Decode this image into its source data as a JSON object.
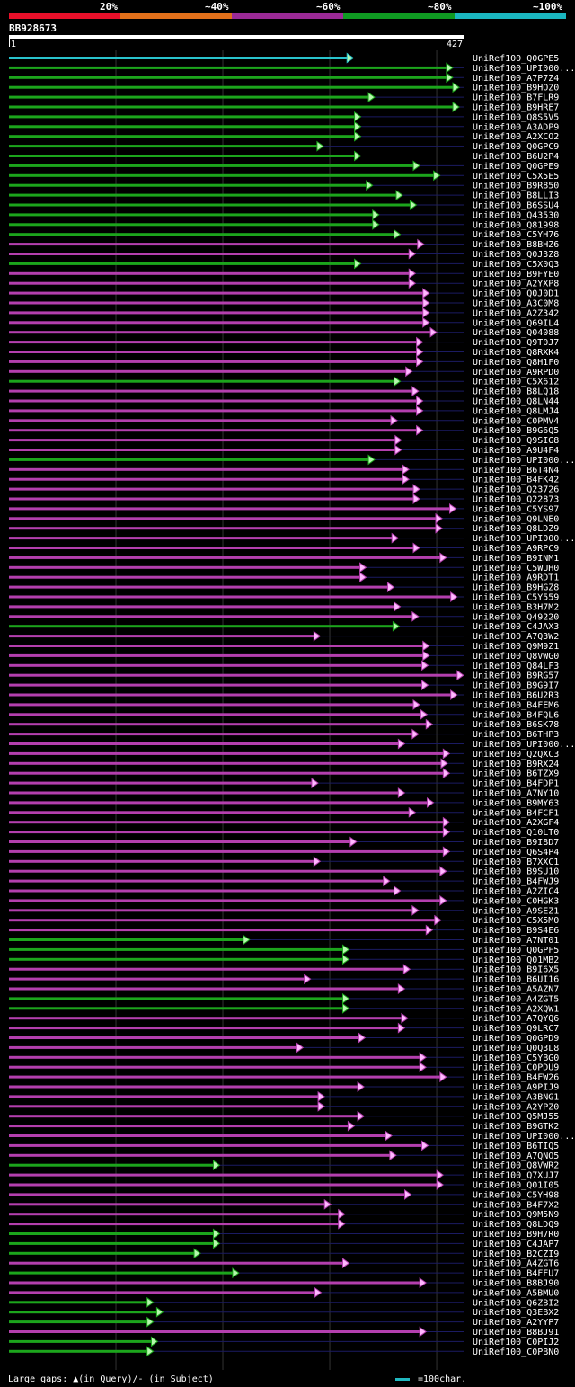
{
  "legend": {
    "bins": [
      {
        "label": "20%",
        "color": "#e8102a"
      },
      {
        "label": "~40%",
        "color": "#e2701a"
      },
      {
        "label": "~60%",
        "color": "#9b2a96"
      },
      {
        "label": "~80%",
        "color": "#0f9a22"
      },
      {
        "label": "~100%",
        "color": "#1ab6c0"
      }
    ]
  },
  "query": {
    "id": "BB928673",
    "start_label": "1",
    "end_label": "427",
    "length": 427
  },
  "colors": {
    "cyan": "#29c3cc",
    "green": "#1ca51c",
    "magenta": "#b43fae",
    "arrow_fill": "#b6f8ad",
    "arrow_fill_m": "#ffb8ff",
    "navy": "#1b1b62",
    "grid": "#333"
  },
  "footer": {
    "gaps_text": "Large gaps: ▲(in Query)/- (in Subject)",
    "scale_text": "=100char."
  },
  "chart_data": {
    "type": "blast_hit_overview",
    "x_range": [
      1,
      427
    ],
    "hits": [
      {
        "name": "UniRef100_Q0GPE5",
        "c": "cyan",
        "end": 323
      },
      {
        "name": "UniRef100_UPI000...",
        "c": "green",
        "end": 416
      },
      {
        "name": "UniRef100_A7P7Z4",
        "c": "green",
        "end": 416
      },
      {
        "name": "UniRef100_B9HOZ0",
        "c": "green",
        "end": 422
      },
      {
        "name": "UniRef100_B7FLR9",
        "c": "green",
        "end": 343
      },
      {
        "name": "UniRef100_B9HRE7",
        "c": "green",
        "end": 422
      },
      {
        "name": "UniRef100_Q8S5V5",
        "c": "green",
        "end": 330
      },
      {
        "name": "UniRef100_A3ADP9",
        "c": "green",
        "end": 330
      },
      {
        "name": "UniRef100_A2XCO2",
        "c": "green",
        "end": 330
      },
      {
        "name": "UniRef100_Q0GPC9",
        "c": "green",
        "end": 295
      },
      {
        "name": "UniRef100_B6U2P4",
        "c": "green",
        "end": 330
      },
      {
        "name": "UniRef100_Q0GPE9",
        "c": "green",
        "end": 385
      },
      {
        "name": "UniRef100_C5X5E5",
        "c": "green",
        "end": 404
      },
      {
        "name": "UniRef100_B9R850",
        "c": "green",
        "end": 341
      },
      {
        "name": "UniRef100_B8LLI3",
        "c": "green",
        "end": 369
      },
      {
        "name": "UniRef100_B6SSU4",
        "c": "green",
        "end": 382
      },
      {
        "name": "UniRef100_Q43530",
        "c": "green",
        "end": 347
      },
      {
        "name": "UniRef100_Q81998",
        "c": "green",
        "end": 347
      },
      {
        "name": "UniRef100_C5YH76",
        "c": "green",
        "end": 367
      },
      {
        "name": "UniRef100_B8BHZ6",
        "c": "magenta",
        "end": 389
      },
      {
        "name": "UniRef100_Q0J3Z8",
        "c": "magenta",
        "end": 381
      },
      {
        "name": "UniRef100_C5X0Q3",
        "c": "green",
        "end": 330
      },
      {
        "name": "UniRef100_B9FYE0",
        "c": "magenta",
        "end": 381
      },
      {
        "name": "UniRef100_A2YXP8",
        "c": "magenta",
        "end": 381
      },
      {
        "name": "UniRef100_Q0J0D1",
        "c": "magenta",
        "end": 394
      },
      {
        "name": "UniRef100_A3C0M8",
        "c": "magenta",
        "end": 394
      },
      {
        "name": "UniRef100_A2Z342",
        "c": "magenta",
        "end": 394
      },
      {
        "name": "UniRef100_Q69IL4",
        "c": "magenta",
        "end": 394
      },
      {
        "name": "UniRef100_Q04088",
        "c": "magenta",
        "end": 401
      },
      {
        "name": "UniRef100_Q9T0J7",
        "c": "magenta",
        "end": 388
      },
      {
        "name": "UniRef100_Q8RXK4",
        "c": "magenta",
        "end": 388
      },
      {
        "name": "UniRef100_Q8H1F0",
        "c": "magenta",
        "end": 388
      },
      {
        "name": "UniRef100_A9RPD0",
        "c": "magenta",
        "end": 378
      },
      {
        "name": "UniRef100_C5X612",
        "c": "green",
        "end": 367
      },
      {
        "name": "UniRef100_B8LQ18",
        "c": "magenta",
        "end": 384
      },
      {
        "name": "UniRef100_Q8LN44",
        "c": "magenta",
        "end": 388
      },
      {
        "name": "UniRef100_Q8LMJ4",
        "c": "magenta",
        "end": 388
      },
      {
        "name": "UniRef100_C0PMV4",
        "c": "magenta",
        "end": 364
      },
      {
        "name": "UniRef100_B9G6Q5",
        "c": "magenta",
        "end": 388
      },
      {
        "name": "UniRef100_Q9SIG8",
        "c": "magenta",
        "end": 368
      },
      {
        "name": "UniRef100_A9U4F4",
        "c": "magenta",
        "end": 368
      },
      {
        "name": "UniRef100_UPI000...",
        "c": "green",
        "end": 343
      },
      {
        "name": "UniRef100_B6T4N4",
        "c": "magenta",
        "end": 375
      },
      {
        "name": "UniRef100_B4FK42",
        "c": "magenta",
        "end": 375
      },
      {
        "name": "UniRef100_Q23726",
        "c": "magenta",
        "end": 385
      },
      {
        "name": "UniRef100_Q22873",
        "c": "magenta",
        "end": 385
      },
      {
        "name": "UniRef100_C5YS97",
        "c": "magenta",
        "end": 419
      },
      {
        "name": "UniRef100_Q9LNE0",
        "c": "magenta",
        "end": 406
      },
      {
        "name": "UniRef100_Q8LDZ9",
        "c": "magenta",
        "end": 406
      },
      {
        "name": "UniRef100_UPI000...",
        "c": "magenta",
        "end": 365
      },
      {
        "name": "UniRef100_A9RPC9",
        "c": "magenta",
        "end": 385
      },
      {
        "name": "UniRef100_B9INM1",
        "c": "magenta",
        "end": 410
      },
      {
        "name": "UniRef100_C5WUH0",
        "c": "magenta",
        "end": 335
      },
      {
        "name": "UniRef100_A9RDT1",
        "c": "magenta",
        "end": 335
      },
      {
        "name": "UniRef100_B9HGZ8",
        "c": "magenta",
        "end": 361
      },
      {
        "name": "UniRef100_C5Y559",
        "c": "magenta",
        "end": 420
      },
      {
        "name": "UniRef100_B3H7M2",
        "c": "magenta",
        "end": 367
      },
      {
        "name": "UniRef100_Q49220",
        "c": "magenta",
        "end": 384
      },
      {
        "name": "UniRef100_C4JAX3",
        "c": "green",
        "end": 366
      },
      {
        "name": "UniRef100_A7Q3W2",
        "c": "magenta",
        "end": 292
      },
      {
        "name": "UniRef100_Q9M9Z1",
        "c": "magenta",
        "end": 394
      },
      {
        "name": "UniRef100_Q8VWG0",
        "c": "magenta",
        "end": 394
      },
      {
        "name": "UniRef100_Q84LF3",
        "c": "magenta",
        "end": 393
      },
      {
        "name": "UniRef100_B9RG57",
        "c": "magenta",
        "end": 426
      },
      {
        "name": "UniRef100_B9G9I7",
        "c": "magenta",
        "end": 393
      },
      {
        "name": "UniRef100_B6U2R3",
        "c": "magenta",
        "end": 420
      },
      {
        "name": "UniRef100_B4FEM6",
        "c": "magenta",
        "end": 385
      },
      {
        "name": "UniRef100_B4FQL6",
        "c": "magenta",
        "end": 392
      },
      {
        "name": "UniRef100_B6SK78",
        "c": "magenta",
        "end": 397
      },
      {
        "name": "UniRef100_B6THP3",
        "c": "magenta",
        "end": 384
      },
      {
        "name": "UniRef100_UPI000...",
        "c": "magenta",
        "end": 371
      },
      {
        "name": "UniRef100_Q2QXC3",
        "c": "magenta",
        "end": 413
      },
      {
        "name": "UniRef100_B9RX24",
        "c": "magenta",
        "end": 411
      },
      {
        "name": "UniRef100_B6TZX9",
        "c": "magenta",
        "end": 413
      },
      {
        "name": "UniRef100_B4FDP1",
        "c": "magenta",
        "end": 290
      },
      {
        "name": "UniRef100_A7NY10",
        "c": "magenta",
        "end": 371
      },
      {
        "name": "UniRef100_B9MY63",
        "c": "magenta",
        "end": 398
      },
      {
        "name": "UniRef100_B4FCF1",
        "c": "magenta",
        "end": 381
      },
      {
        "name": "UniRef100_A2XGF4",
        "c": "magenta",
        "end": 413
      },
      {
        "name": "UniRef100_Q10LT0",
        "c": "magenta",
        "end": 413
      },
      {
        "name": "UniRef100_B9I8D7",
        "c": "magenta",
        "end": 326
      },
      {
        "name": "UniRef100_Q6S4P4",
        "c": "magenta",
        "end": 413
      },
      {
        "name": "UniRef100_B7XXC1",
        "c": "magenta",
        "end": 292
      },
      {
        "name": "UniRef100_B9SU10",
        "c": "magenta",
        "end": 410
      },
      {
        "name": "UniRef100_B4FWJ9",
        "c": "magenta",
        "end": 357
      },
      {
        "name": "UniRef100_A2ZIC4",
        "c": "magenta",
        "end": 367
      },
      {
        "name": "UniRef100_C0HGK3",
        "c": "magenta",
        "end": 410
      },
      {
        "name": "UniRef100_A9SEZ1",
        "c": "magenta",
        "end": 384
      },
      {
        "name": "UniRef100_C5X5M0",
        "c": "magenta",
        "end": 405
      },
      {
        "name": "UniRef100_B9S4E6",
        "c": "magenta",
        "end": 397
      },
      {
        "name": "UniRef100_A7NT01",
        "c": "green",
        "end": 226
      },
      {
        "name": "UniRef100_Q0GPF5",
        "c": "green",
        "end": 319
      },
      {
        "name": "UniRef100_Q01MB2",
        "c": "green",
        "end": 319
      },
      {
        "name": "UniRef100_B9I6X5",
        "c": "magenta",
        "end": 376
      },
      {
        "name": "UniRef100_B6UI16",
        "c": "magenta",
        "end": 283
      },
      {
        "name": "UniRef100_A5AZN7",
        "c": "magenta",
        "end": 371
      },
      {
        "name": "UniRef100_A4ZGT5",
        "c": "green",
        "end": 319
      },
      {
        "name": "UniRef100_A2XQW1",
        "c": "green",
        "end": 319
      },
      {
        "name": "UniRef100_A7QYQ6",
        "c": "magenta",
        "end": 374
      },
      {
        "name": "UniRef100_Q9LRC7",
        "c": "magenta",
        "end": 371
      },
      {
        "name": "UniRef100_Q0GPD9",
        "c": "magenta",
        "end": 334
      },
      {
        "name": "UniRef100_Q0Q3L8",
        "c": "magenta",
        "end": 276
      },
      {
        "name": "UniRef100_C5YBG0",
        "c": "magenta",
        "end": 391
      },
      {
        "name": "UniRef100_C0PDU9",
        "c": "magenta",
        "end": 391
      },
      {
        "name": "UniRef100_B4FW26",
        "c": "magenta",
        "end": 410
      },
      {
        "name": "UniRef100_A9PIJ9",
        "c": "magenta",
        "end": 333
      },
      {
        "name": "UniRef100_A3BNG1",
        "c": "magenta",
        "end": 296
      },
      {
        "name": "UniRef100_A2YPZ0",
        "c": "magenta",
        "end": 296
      },
      {
        "name": "UniRef100_Q5MJ55",
        "c": "magenta",
        "end": 333
      },
      {
        "name": "UniRef100_B9GTK2",
        "c": "magenta",
        "end": 324
      },
      {
        "name": "UniRef100_UPI000...",
        "c": "magenta",
        "end": 359
      },
      {
        "name": "UniRef100_B6TIQ5",
        "c": "magenta",
        "end": 393
      },
      {
        "name": "UniRef100_A7QNO5",
        "c": "magenta",
        "end": 363
      },
      {
        "name": "UniRef100_Q8VWR2",
        "c": "green",
        "end": 198
      },
      {
        "name": "UniRef100_Q7XUJ7",
        "c": "magenta",
        "end": 407
      },
      {
        "name": "UniRef100_Q01I05",
        "c": "magenta",
        "end": 407
      },
      {
        "name": "UniRef100_C5YH98",
        "c": "magenta",
        "end": 377
      },
      {
        "name": "UniRef100_B4F7X2",
        "c": "magenta",
        "end": 302
      },
      {
        "name": "UniRef100_Q9M5N9",
        "c": "magenta",
        "end": 315
      },
      {
        "name": "UniRef100_Q8LDQ9",
        "c": "magenta",
        "end": 315
      },
      {
        "name": "UniRef100_B9H7R0",
        "c": "green",
        "end": 198
      },
      {
        "name": "UniRef100_C4JAP7",
        "c": "green",
        "end": 198
      },
      {
        "name": "UniRef100_B2CZI9",
        "c": "green",
        "end": 180
      },
      {
        "name": "UniRef100_A4ZGT6",
        "c": "magenta",
        "end": 319
      },
      {
        "name": "UniRef100_B4FFU7",
        "c": "green",
        "end": 216
      },
      {
        "name": "UniRef100_B8BJ90",
        "c": "magenta",
        "end": 391
      },
      {
        "name": "UniRef100_A5BMU0",
        "c": "magenta",
        "end": 293
      },
      {
        "name": "UniRef100_Q6ZBI2",
        "c": "green",
        "end": 136
      },
      {
        "name": "UniRef100_Q3EBX2",
        "c": "green",
        "end": 145
      },
      {
        "name": "UniRef100_A2YYP7",
        "c": "green",
        "end": 136
      },
      {
        "name": "UniRef100_B8BJ91",
        "c": "magenta",
        "end": 391
      },
      {
        "name": "UniRef100_C0PIJ2",
        "c": "green",
        "end": 140
      },
      {
        "name": "UniRef100_C0PBN0",
        "c": "green",
        "end": 136
      }
    ]
  }
}
